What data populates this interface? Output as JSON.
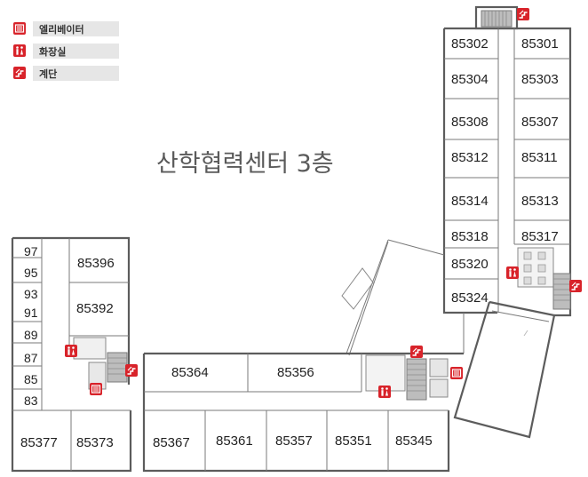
{
  "title": "산학협력센터 3층",
  "legend": [
    {
      "icon": "elevator-icon",
      "label": "엘리베이터"
    },
    {
      "icon": "restroom-icon",
      "label": "화장실"
    },
    {
      "icon": "stairs-icon",
      "label": "계단"
    }
  ],
  "colors": {
    "icon_red": "#d8232a",
    "legend_bar": "#e6e6e6",
    "wall": "#5c5c5c",
    "title": "#5a5a5a"
  },
  "rooms": {
    "r85302": "85302",
    "r85301": "85301",
    "r85304": "85304",
    "r85303": "85303",
    "r85308": "85308",
    "r85307": "85307",
    "r85312": "85312",
    "r85311": "85311",
    "r85314": "85314",
    "r85313": "85313",
    "r85318": "85318",
    "r85317": "85317",
    "r85320": "85320",
    "r85324": "85324",
    "r97": "97",
    "r95": "95",
    "r93": "93",
    "r91": "91",
    "r89": "89",
    "r87": "87",
    "r85": "85",
    "r83": "83",
    "r85396": "85396",
    "r85392": "85392",
    "r85377": "85377",
    "r85373": "85373",
    "r85364": "85364",
    "r85356": "85356",
    "r85367": "85367",
    "r85361": "85361",
    "r85357": "85357",
    "r85351": "85351",
    "r85345": "85345"
  }
}
